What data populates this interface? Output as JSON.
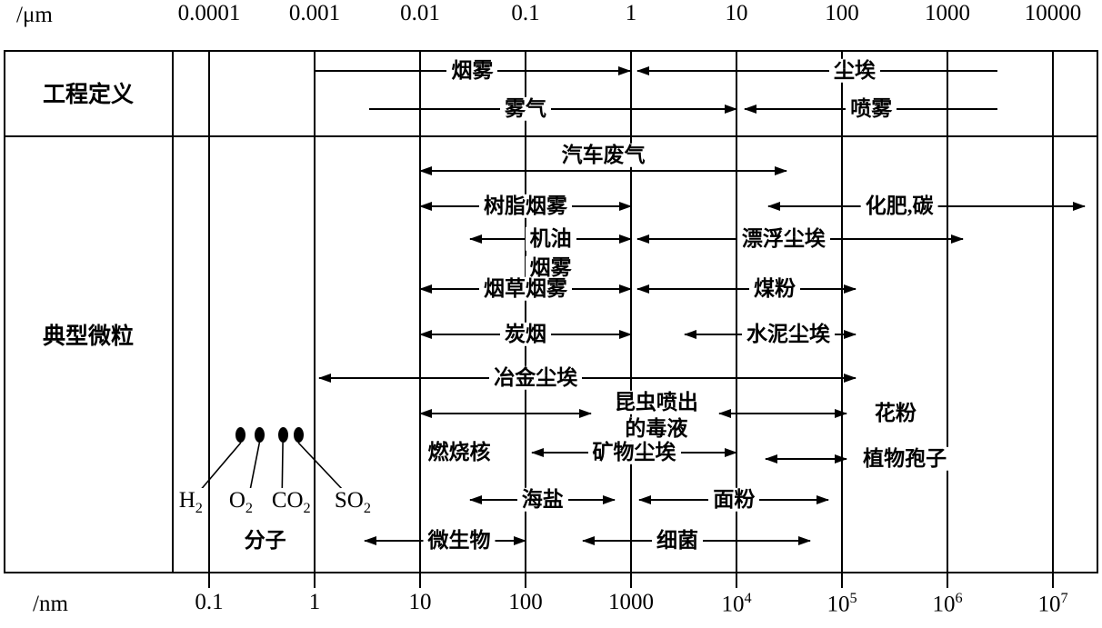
{
  "chart_data": {
    "type": "bar",
    "subtype": "logarithmic-particle-size-range-chart",
    "grid": "vertical-log-decades",
    "x_range_um": [
      0.0001,
      10000
    ],
    "x_axis_top": {
      "unit": "/μm",
      "ticks": [
        "0.0001",
        "0.001",
        "0.01",
        "0.1",
        "1",
        "10",
        "100",
        "1000",
        "10000"
      ]
    },
    "x_axis_bottom": {
      "unit": "/nm",
      "ticks": [
        "0.1",
        "1",
        "10",
        "100",
        "1000",
        "10^4",
        "10^5",
        "10^6",
        "10^7"
      ]
    },
    "sections": [
      {
        "name": "工程定义",
        "items": [
          {
            "label": "烟雾",
            "range_um": [
              0.001,
              0.98
            ],
            "heads": "right",
            "row": "e1"
          },
          {
            "label": "尘埃",
            "range_um": [
              1.15,
              3000
            ],
            "heads": "left",
            "row": "e1",
            "label_um": 132
          },
          {
            "label": "雾气",
            "range_um": [
              0.0033,
              10
            ],
            "heads": "right",
            "row": "e2",
            "label_um": 0.1
          },
          {
            "label": "喷雾",
            "range_um": [
              12,
              3000
            ],
            "heads": "left",
            "row": "e2"
          }
        ]
      },
      {
        "name": "典型微粒",
        "items": [
          {
            "label": "汽车废气",
            "range_um": [
              0.01,
              30
            ],
            "heads": "both",
            "row": "t1",
            "label_placement": "above"
          },
          {
            "label": "树脂烟雾",
            "range_um": [
              0.01,
              1
            ],
            "heads": "both",
            "row": "t2"
          },
          {
            "label": "化肥,碳",
            "range_um": [
              20,
              20000
            ],
            "heads": "both",
            "row": "t2",
            "label_um": 350
          },
          {
            "label": "机油",
            "label2": "烟雾",
            "label2_row": "t3b",
            "range_um": [
              0.03,
              1
            ],
            "heads": "both",
            "row": "t3"
          },
          {
            "label": "漂浮尘埃",
            "range_um": [
              1.15,
              1400
            ],
            "heads": "both",
            "row": "t3",
            "label_um": 28
          },
          {
            "label": "烟草烟雾",
            "range_um": [
              0.01,
              1
            ],
            "heads": "both",
            "row": "t4"
          },
          {
            "label": "煤粉",
            "range_um": [
              1.15,
              135
            ],
            "heads": "both",
            "row": "t4",
            "label_um": 23
          },
          {
            "label": "炭烟",
            "range_um": [
              0.01,
              1
            ],
            "heads": "both",
            "row": "t5"
          },
          {
            "label": "水泥尘埃",
            "range_um": [
              3.2,
              135
            ],
            "heads": "both",
            "row": "t5",
            "label_um": 31
          },
          {
            "label": "冶金尘埃",
            "range_um": [
              0.0011,
              135
            ],
            "heads": "both",
            "row": "t6",
            "label_um": 0.125
          },
          {
            "label": "燃烧核",
            "range_um": [
              0.01,
              0.42
            ],
            "heads": "both",
            "row": "t7",
            "label_row": "t8",
            "label_um": 0.0235
          },
          {
            "label": "昆虫喷出",
            "label2": "的毒液",
            "label_row": "t7a",
            "label2_row": "t7b",
            "range_um": [
              6.8,
              110
            ],
            "heads": "both",
            "row": "t7",
            "label_um": 1.74
          },
          {
            "label": "花粉",
            "row": "t7",
            "label_um": 322
          },
          {
            "label": "矿物尘埃",
            "range_um": [
              0.115,
              10
            ],
            "heads": "both",
            "row": "t8"
          },
          {
            "label": "植物孢子",
            "range_um": [
              19,
              110
            ],
            "heads": "both",
            "row": "t8b",
            "label_um": 394
          },
          {
            "label": "海盐",
            "range_um": [
              0.03,
              0.7
            ],
            "heads": "both",
            "row": "t9"
          },
          {
            "label": "面粉",
            "range_um": [
              1.2,
              75
            ],
            "heads": "both",
            "row": "t9"
          },
          {
            "label": "微生物",
            "range_um": [
              0.003,
              0.1
            ],
            "heads": "both",
            "row": "t10",
            "label_um": 0.0235
          },
          {
            "label": "细菌",
            "range_um": [
              0.35,
              50
            ],
            "heads": "both",
            "row": "t10",
            "label_um": 2.75
          }
        ]
      }
    ],
    "molecules": {
      "caption": "分子",
      "caption_um": 0.00034,
      "dots_um": [
        0.0002,
        0.0003,
        0.0005,
        0.0007
      ],
      "labels": [
        {
          "text": "H_2",
          "um": 6.7e-05
        },
        {
          "text": "O_2",
          "um": 0.0002
        },
        {
          "text": "CO_2",
          "um": 0.0006
        },
        {
          "text": "SO_2",
          "um": 0.0023
        }
      ]
    }
  }
}
